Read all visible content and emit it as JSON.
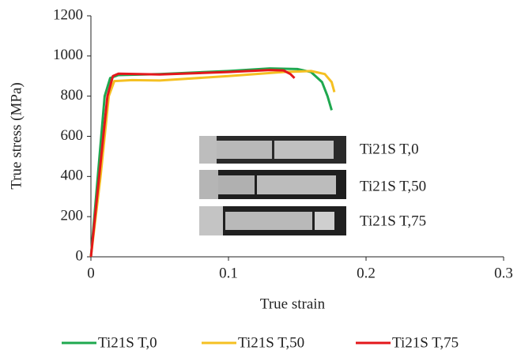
{
  "chart_data": {
    "type": "line",
    "x_label": "True strain",
    "y_label": "True stress (MPa)",
    "xlim": [
      0,
      0.3
    ],
    "xticks": [
      0,
      0.1,
      0.2,
      0.3
    ],
    "ylim": [
      0,
      1200
    ],
    "yticks": [
      0,
      200,
      400,
      600,
      800,
      1000,
      1200
    ],
    "grid": false,
    "legend": "bottom",
    "series": [
      {
        "name": "Ti21S T,0",
        "color": "#1fa84f",
        "x": [
          0,
          0.005,
          0.01,
          0.014,
          0.02,
          0.05,
          0.1,
          0.13,
          0.15,
          0.16,
          0.168,
          0.172,
          0.175
        ],
        "values": [
          0,
          400,
          800,
          890,
          905,
          910,
          925,
          938,
          935,
          920,
          870,
          800,
          730
        ]
      },
      {
        "name": "Ti21S T,50",
        "color": "#f5c022",
        "x": [
          0,
          0.007,
          0.013,
          0.017,
          0.03,
          0.05,
          0.1,
          0.14,
          0.16,
          0.17,
          0.175,
          0.177
        ],
        "values": [
          0,
          400,
          800,
          875,
          880,
          878,
          900,
          920,
          925,
          910,
          870,
          820
        ]
      },
      {
        "name": "Ti21S T,75",
        "color": "#e3171b",
        "x": [
          0,
          0.006,
          0.012,
          0.016,
          0.02,
          0.05,
          0.1,
          0.13,
          0.14,
          0.145,
          0.148
        ],
        "values": [
          0,
          400,
          800,
          900,
          912,
          908,
          920,
          930,
          928,
          910,
          890
        ]
      }
    ]
  }
}
